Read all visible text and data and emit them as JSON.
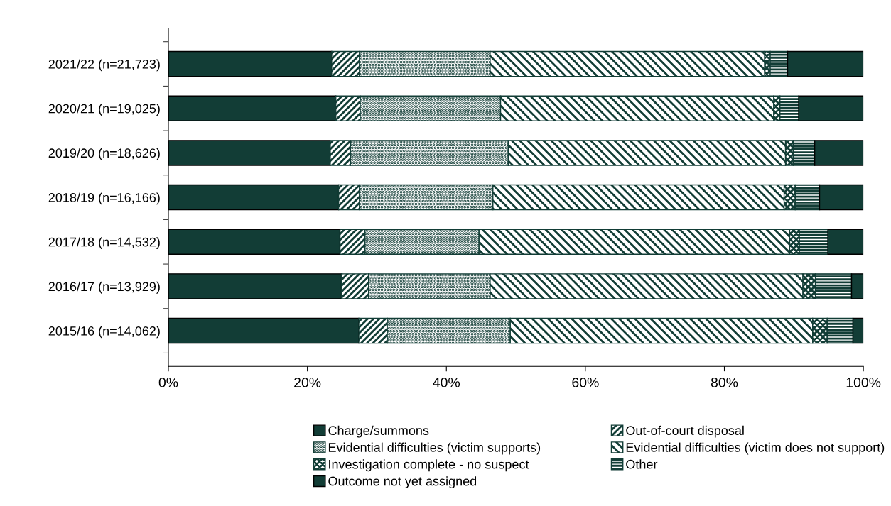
{
  "chart_data": {
    "type": "bar",
    "orientation": "horizontal",
    "stacked": true,
    "categories": [
      "2021/22 (n=21,723)",
      "2020/21 (n=19,025)",
      "2019/20 (n=18,626)",
      "2018/19 (n=16,166)",
      "2017/18 (n=14,532)",
      "2016/17 (n=13,929)",
      "2015/16 (n=14,062)"
    ],
    "series": [
      {
        "name": "Charge/summons",
        "color": "#123d36",
        "values": [
          23.5,
          24.1,
          23.3,
          24.5,
          24.7,
          24.9,
          27.4
        ]
      },
      {
        "name": "Out-of-court disposal",
        "color": "#123d36",
        "values": [
          4.0,
          3.5,
          2.9,
          3.0,
          3.6,
          3.9,
          4.1
        ]
      },
      {
        "name": "Evidential difficulties (victim supports)",
        "color": "#123d36",
        "values": [
          18.8,
          20.2,
          22.7,
          19.2,
          16.4,
          17.5,
          17.7
        ]
      },
      {
        "name": "Evidential difficulties (victim does not support)",
        "color": "#123d36",
        "values": [
          39.5,
          39.3,
          39.9,
          41.9,
          44.7,
          45.0,
          43.5
        ]
      },
      {
        "name": "Investigation complete - no suspect",
        "color": "#123d36",
        "values": [
          0.8,
          0.9,
          1.1,
          1.6,
          1.4,
          1.8,
          2.1
        ]
      },
      {
        "name": "Other",
        "color": "#123d36",
        "values": [
          2.5,
          2.7,
          3.1,
          3.5,
          4.1,
          5.2,
          3.7
        ]
      },
      {
        "name": "Outcome not yet assigned",
        "color": "#123d36",
        "values": [
          10.9,
          9.3,
          7.0,
          6.3,
          5.1,
          1.7,
          1.5
        ]
      }
    ],
    "xlim": [
      0,
      100
    ],
    "xticks": [
      {
        "value": 0,
        "label": "0%"
      },
      {
        "value": 20,
        "label": "20%"
      },
      {
        "value": 40,
        "label": "40%"
      },
      {
        "value": 60,
        "label": "60%"
      },
      {
        "value": 80,
        "label": "80%"
      },
      {
        "value": 100,
        "label": "100%"
      }
    ],
    "grid": false,
    "legend": "bottom"
  }
}
